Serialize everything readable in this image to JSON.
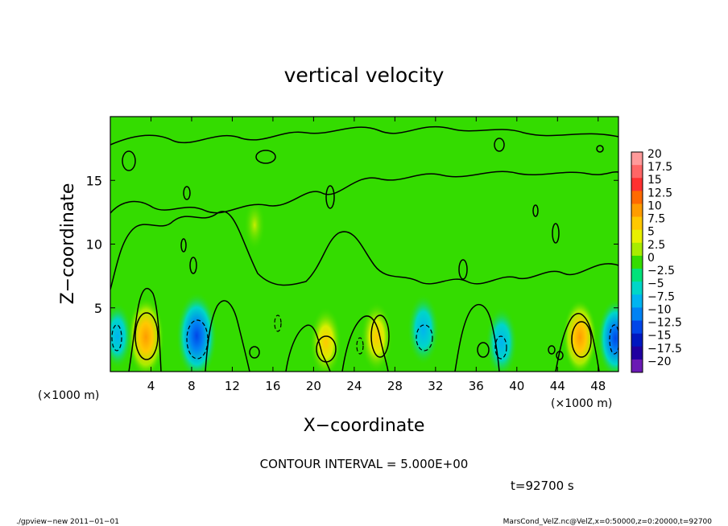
{
  "chart_data": {
    "type": "heatmap",
    "title": "vertical velocity",
    "xlabel": "X−coordinate",
    "ylabel": "Z−coordinate",
    "x_unit": "(×1000 m)",
    "y_unit": "(×1000 m)",
    "xlim": [
      0,
      50
    ],
    "ylim": [
      0,
      20
    ],
    "x_ticks": [
      "4",
      "8",
      "12",
      "16",
      "20",
      "24",
      "28",
      "32",
      "36",
      "40",
      "44",
      "48"
    ],
    "x_tick_values": [
      4,
      8,
      12,
      16,
      20,
      24,
      28,
      32,
      36,
      40,
      44,
      48
    ],
    "y_ticks": [
      "5",
      "10",
      "15"
    ],
    "y_tick_values": [
      5,
      10,
      15
    ],
    "colorbar": {
      "labels": [
        "20",
        "17.5",
        "15",
        "12.5",
        "10",
        "7.5",
        "5",
        "2.5",
        "0",
        "−2.5",
        "−5",
        "−7.5",
        "−10",
        "−12.5",
        "−15",
        "−17.5",
        "−20"
      ],
      "levels": [
        20,
        17.5,
        15,
        12.5,
        10,
        7.5,
        5,
        2.5,
        0,
        -2.5,
        -5,
        -7.5,
        -10,
        -12.5,
        -15,
        -17.5,
        -20
      ],
      "colors": [
        "#ff9a9a",
        "#ff6666",
        "#ff3030",
        "#ff6a00",
        "#ff9c00",
        "#ffc800",
        "#e8f000",
        "#a8ec00",
        "#34dc00",
        "#00e27a",
        "#00d6c8",
        "#00b4f0",
        "#0082f4",
        "#0046e8",
        "#0018c0",
        "#2000a0",
        "#6a1ab4"
      ]
    },
    "features": [
      {
        "type": "updraft",
        "x": 3.5,
        "z": 2.7,
        "value": 9
      },
      {
        "type": "downdraft",
        "x": 8.5,
        "z": 2.8,
        "value": -11
      },
      {
        "type": "updraft",
        "x": 21.2,
        "z": 2.3,
        "value": 7
      },
      {
        "type": "updraft",
        "x": 26.2,
        "z": 2.7,
        "value": 7
      },
      {
        "type": "downdraft",
        "x": 30.8,
        "z": 3.3,
        "value": -7
      },
      {
        "type": "downdraft",
        "x": 38.5,
        "z": 2.3,
        "value": -7
      },
      {
        "type": "updraft",
        "x": 46.2,
        "z": 2.7,
        "value": 8
      },
      {
        "type": "downdraft",
        "x": 49.7,
        "z": 2.6,
        "value": -9
      },
      {
        "type": "downdraft",
        "x": 0.7,
        "z": 2.8,
        "value": -6
      },
      {
        "type": "updraft",
        "x": 14.2,
        "z": 11.5,
        "value": 2.5
      }
    ],
    "contour_interval_text": "CONTOUR INTERVAL = 5.000E+00",
    "time_text": "t=92700 s"
  },
  "footer": {
    "left": "./gpview−new 2011−01−01",
    "right": "MarsCond_VelZ.nc@VelZ,x=0:50000,z=0:20000,t=92700"
  },
  "colors": {
    "background_field": "#34dc00",
    "frame": "#000000"
  }
}
